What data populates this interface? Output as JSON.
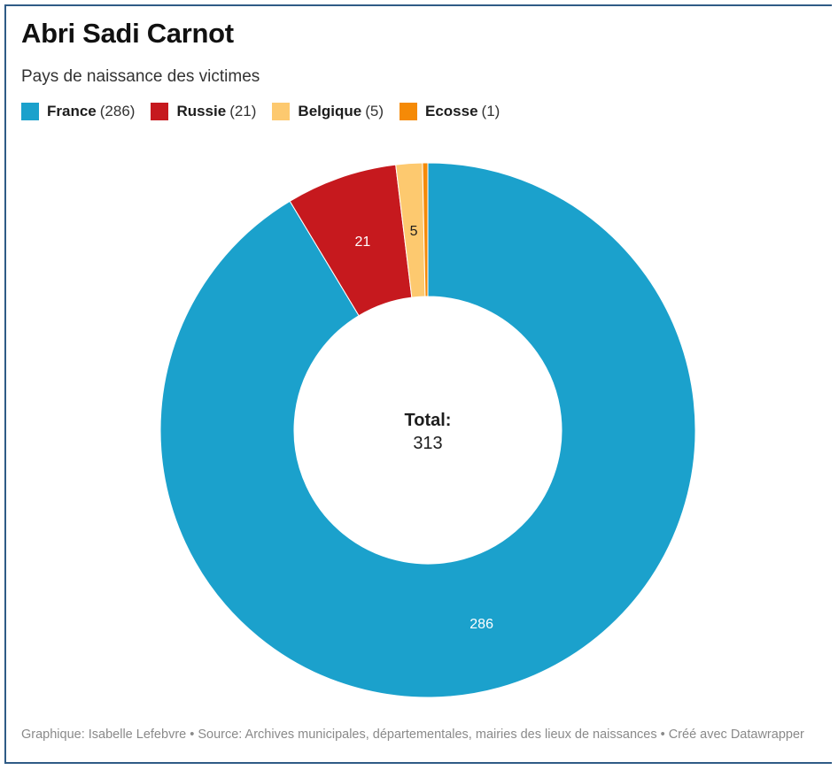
{
  "title": "Abri Sadi Carnot",
  "subtitle": "Pays de naissance des victimes",
  "legend": [
    {
      "name": "France",
      "count": "(286)",
      "color": "#1ba1cc"
    },
    {
      "name": "Russie",
      "count": "(21)",
      "color": "#c6191e"
    },
    {
      "name": "Belgique",
      "count": "(5)",
      "color": "#fdc96f"
    },
    {
      "name": "Ecosse",
      "count": "(1)",
      "color": "#f58a07"
    }
  ],
  "center": {
    "label": "Total:",
    "value": "313"
  },
  "footer": "Graphique: Isabelle Lefebvre • Source: Archives municipales, départementales, mairies des lieux de naissances • Créé avec Datawrapper",
  "chart_data": {
    "type": "pie",
    "donut": true,
    "title": "Abri Sadi Carnot",
    "subtitle": "Pays de naissance des victimes",
    "categories": [
      "France",
      "Russie",
      "Belgique",
      "Ecosse"
    ],
    "values": [
      286,
      21,
      5,
      1
    ],
    "data_labels": [
      "286",
      "21",
      "5",
      ""
    ],
    "colors": [
      "#1ba1cc",
      "#c6191e",
      "#fdc96f",
      "#f58a07"
    ],
    "total": 313,
    "legend_position": "top-left"
  }
}
